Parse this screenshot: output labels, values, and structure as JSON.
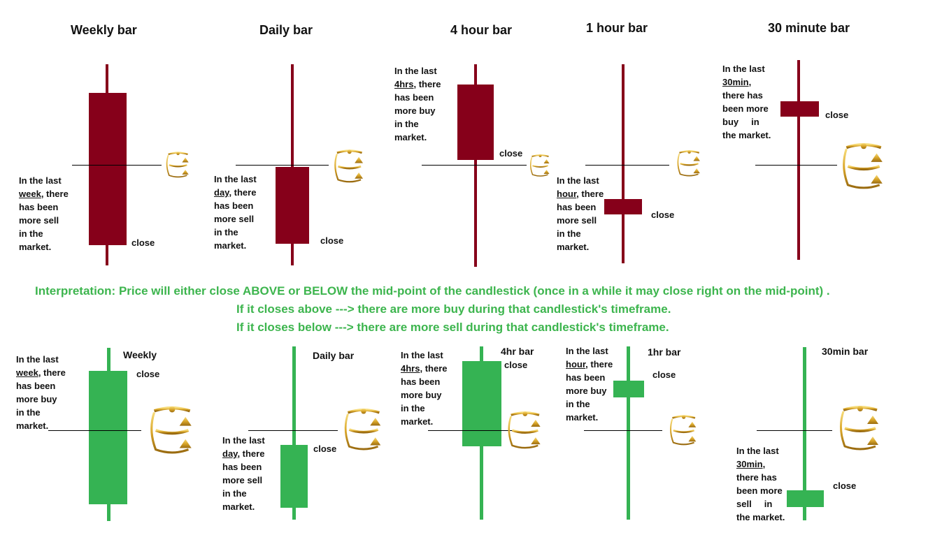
{
  "top_row": [
    {
      "title": "Weekly bar",
      "note_pre": "In the last\n",
      "note_u": "week",
      "note_post": ", there\nhas been\nmore sell\nin the\nmarket.",
      "close": "close"
    },
    {
      "title": "Daily bar",
      "note_pre": "In the last\n",
      "note_u": "day",
      "note_post": ", there\nhas been\nmore sell\nin the\nmarket.",
      "close": "close"
    },
    {
      "title": "4 hour bar",
      "note_pre": "In the last\n",
      "note_u": "4hrs",
      "note_post": ", there\nhas been\nmore buy\nin the\nmarket.",
      "close": "close"
    },
    {
      "title": "1 hour bar",
      "note_pre": "In the last\n",
      "note_u": "hour",
      "note_post": ", there\nhas been\nmore sell\nin the\nmarket.",
      "close": "close"
    },
    {
      "title": "30 minute bar",
      "note_pre": "In the last\n",
      "note_u": "30min",
      "note_post": ",\nthere has\nbeen more\nbuy     in\nthe market.",
      "close": "close"
    }
  ],
  "interpretation": {
    "line1": "Interpretation:  Price will either close ABOVE or BELOW the mid-point of the candlestick (once in a while it may close right on the mid-point) .",
    "line2": "If it closes above ---> there are more buy      during that candlestick's timeframe.",
    "line3": "If it closes below ---> there are more sell      during that candlestick's timeframe."
  },
  "bottom_row": [
    {
      "title": "Weekly",
      "note_pre": "In the last\n",
      "note_u": "week",
      "note_post": ", there\nhas been\nmore buy\nin the\nmarket.",
      "close": "close"
    },
    {
      "title": "Daily bar",
      "note_pre": "In the last\n",
      "note_u": "day",
      "note_post": ", there\nhas been\nmore sell\nin the\nmarket.",
      "close": "close"
    },
    {
      "title": "4hr bar",
      "note_pre": "In the last\n",
      "note_u": "4hrs",
      "note_post": ", there\nhas been\nmore buy\nin the\nmarket.",
      "close": "close"
    },
    {
      "title": "1hr bar",
      "note_pre": "In the last\n",
      "note_u": "hour",
      "note_post": ", there\nhas been\nmore buy\nin the\nmarket.",
      "close": "close"
    },
    {
      "title": "30min bar",
      "note_pre": "In the last\n",
      "note_u": "30min",
      "note_post": ",\nthere has\nbeen more\nsell     in\nthe market.",
      "close": "close"
    }
  ],
  "colors": {
    "bearish": "#86001a",
    "bullish": "#35b353",
    "interpretation_text": "#3db54e",
    "scale_gold": "#d4a017"
  },
  "icons": [
    "scales-icon"
  ]
}
